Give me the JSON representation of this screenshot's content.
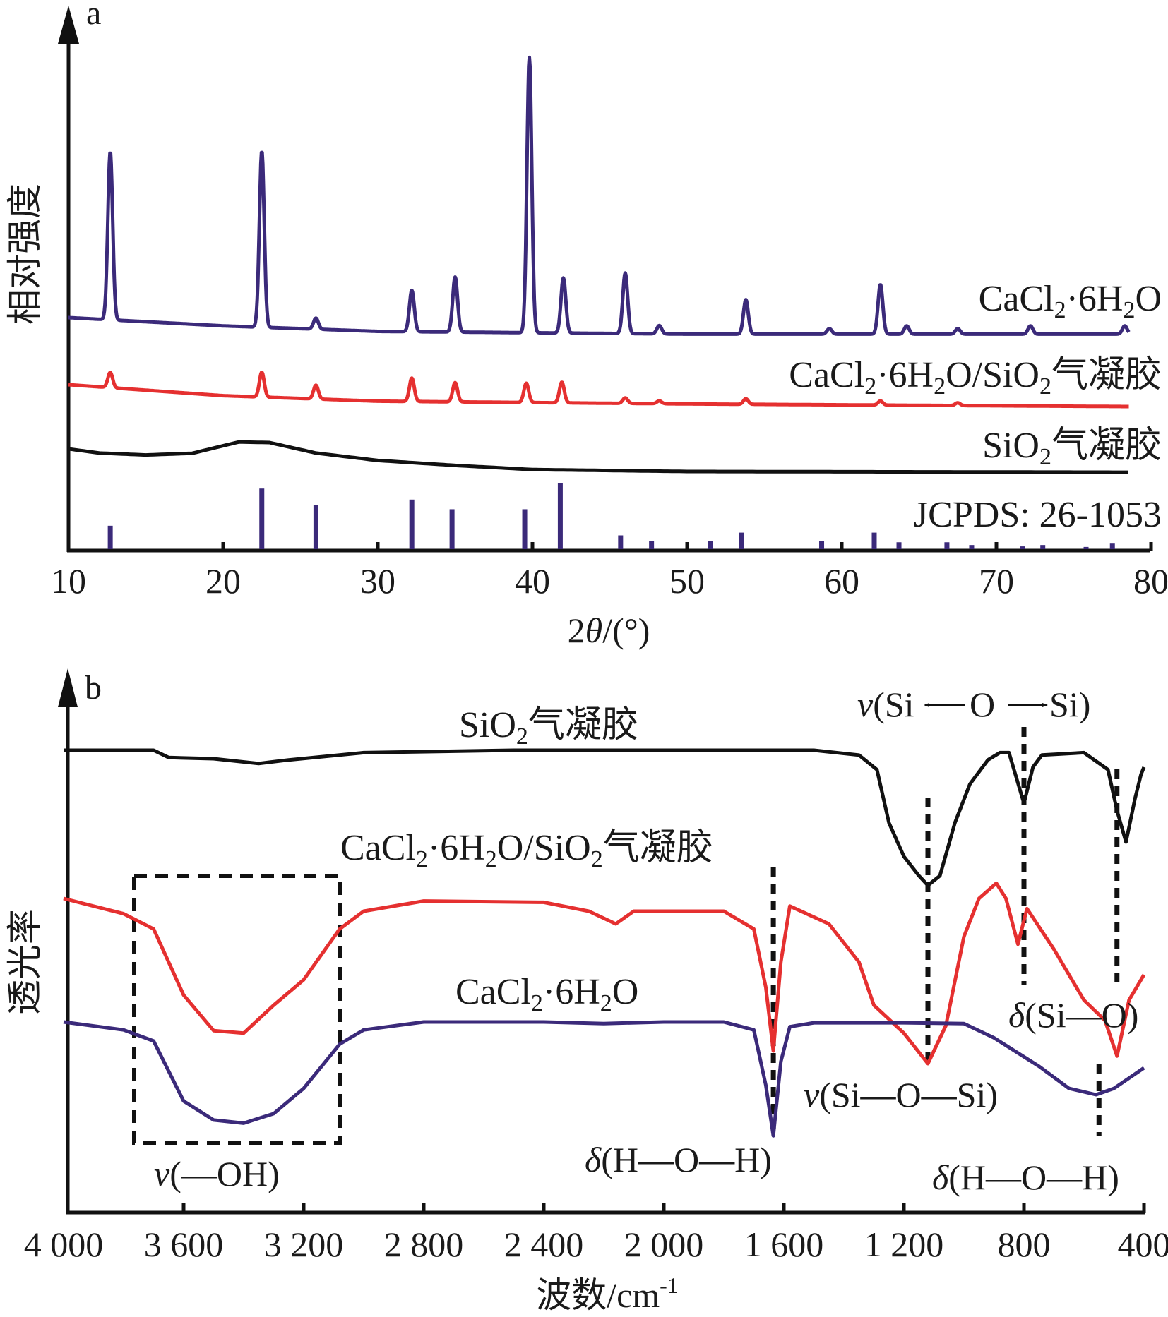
{
  "chart_data": [
    {
      "panel": "a",
      "type": "line",
      "title": "",
      "xlabel": "2θ/(°)",
      "ylabel": "相对强度",
      "xlim": [
        10,
        80
      ],
      "xticks": [
        10,
        20,
        30,
        40,
        50,
        60,
        70,
        80
      ],
      "y_units": "relative intensity (a.u., strongest peak = 100)",
      "series": [
        {
          "name": "CaCl₂·6H₂O",
          "label_parts": [
            "CaCl",
            "2",
            "·6H",
            "2",
            "O"
          ],
          "color": "#3b2a7a",
          "baseline": [
            [
              10,
              0
            ],
            [
              20,
              -3
            ],
            [
              30,
              -5
            ],
            [
              50,
              -6
            ],
            [
              80,
              -6
            ]
          ],
          "peaks": [
            [
              12.7,
              61
            ],
            [
              22.5,
              64
            ],
            [
              26.0,
              4
            ],
            [
              32.2,
              15
            ],
            [
              35.0,
              20
            ],
            [
              39.8,
              100
            ],
            [
              42.0,
              20
            ],
            [
              46.0,
              22
            ],
            [
              48.2,
              3
            ],
            [
              53.8,
              12.5
            ],
            [
              59.2,
              2
            ],
            [
              62.5,
              18
            ],
            [
              64.2,
              3
            ],
            [
              67.5,
              2
            ],
            [
              72.2,
              3
            ],
            [
              78.3,
              3
            ]
          ]
        },
        {
          "name": "CaCl₂·6H₂O/SiO₂气凝胶",
          "label_parts": [
            "CaCl",
            "2",
            "·6H",
            "2",
            "O/SiO",
            "2",
            "气凝胶"
          ],
          "color": "#e53030",
          "baseline": [
            [
              10,
              0
            ],
            [
              20,
              -4
            ],
            [
              30,
              -6
            ],
            [
              50,
              -7
            ],
            [
              80,
              -8
            ]
          ],
          "peaks": [
            [
              12.7,
              5.5
            ],
            [
              22.5,
              9
            ],
            [
              26.0,
              5
            ],
            [
              32.2,
              8.5
            ],
            [
              35.0,
              7
            ],
            [
              39.6,
              7
            ],
            [
              41.9,
              7.5
            ],
            [
              46.0,
              2
            ],
            [
              48.2,
              1
            ],
            [
              53.8,
              2
            ],
            [
              62.5,
              1.5
            ],
            [
              67.5,
              1
            ]
          ]
        },
        {
          "name": "SiO₂气凝胶",
          "label_parts": [
            "SiO",
            "2",
            "气凝胶"
          ],
          "color": "#111111",
          "points": [
            [
              10,
              0
            ],
            [
              12,
              -1.5
            ],
            [
              15,
              -2.2
            ],
            [
              18,
              -1.6
            ],
            [
              21,
              2.5
            ],
            [
              23,
              2.3
            ],
            [
              26,
              -1.5
            ],
            [
              30,
              -4.2
            ],
            [
              35,
              -6
            ],
            [
              40,
              -7.5
            ],
            [
              50,
              -8.2
            ],
            [
              60,
              -8.3
            ],
            [
              80,
              -8.5
            ]
          ]
        }
      ],
      "reference": {
        "name": "JCPDS: 26-1053",
        "color": "#3b2a7a",
        "sticks": [
          [
            12.7,
            8.5
          ],
          [
            22.5,
            22
          ],
          [
            26.0,
            16
          ],
          [
            32.2,
            18
          ],
          [
            34.8,
            14.5
          ],
          [
            39.5,
            14.5
          ],
          [
            41.8,
            24
          ],
          [
            45.7,
            5
          ],
          [
            47.7,
            3
          ],
          [
            51.5,
            3
          ],
          [
            53.5,
            6
          ],
          [
            58.7,
            3
          ],
          [
            62.1,
            6
          ],
          [
            63.7,
            2.5
          ],
          [
            66.8,
            2.5
          ],
          [
            68.4,
            1.5
          ],
          [
            71.7,
            1
          ],
          [
            73.0,
            1.5
          ],
          [
            75.8,
            0.8
          ],
          [
            77.5,
            2
          ]
        ]
      }
    },
    {
      "panel": "b",
      "type": "line",
      "title": "",
      "xlabel": "波数/cm",
      "xlabel_superscript": "-1",
      "ylabel": "透光率",
      "xlim": [
        4000,
        400
      ],
      "xticks": [
        4000,
        3600,
        3200,
        2800,
        2400,
        2000,
        1600,
        1200,
        800,
        400
      ],
      "xtick_labels": [
        "4 000",
        "3 600",
        "3 200",
        "2 800",
        "2 400",
        "2 000",
        "1 600",
        "1 200",
        "800",
        "400"
      ],
      "y_units": "transmittance (a.u., offset traces)",
      "series": [
        {
          "name": "SiO₂气凝胶",
          "label_parts": [
            "SiO",
            "2",
            "气凝胶"
          ],
          "color": "#111111",
          "points": [
            [
              4000,
              100
            ],
            [
              3700,
              100
            ],
            [
              3650,
              97
            ],
            [
              3500,
              96.5
            ],
            [
              3350,
              94.5
            ],
            [
              3250,
              96
            ],
            [
              3000,
              99
            ],
            [
              2500,
              100
            ],
            [
              2000,
              100
            ],
            [
              1500,
              100
            ],
            [
              1350,
              98
            ],
            [
              1290,
              92
            ],
            [
              1250,
              70
            ],
            [
              1200,
              56
            ],
            [
              1150,
              48
            ],
            [
              1120,
              44
            ],
            [
              1080,
              48
            ],
            [
              1030,
              70
            ],
            [
              980,
              86
            ],
            [
              920,
              96
            ],
            [
              880,
              99
            ],
            [
              850,
              99
            ],
            [
              800,
              78
            ],
            [
              770,
              93
            ],
            [
              740,
              98
            ],
            [
              600,
              99
            ],
            [
              520,
              92
            ],
            [
              490,
              75
            ],
            [
              460,
              62
            ],
            [
              430,
              80
            ],
            [
              410,
              90
            ],
            [
              400,
              93
            ]
          ]
        },
        {
          "name": "CaCl₂·6H₂O/SiO₂气凝胶",
          "label_parts": [
            "CaCl",
            "2",
            "·6H",
            "2",
            "O/SiO",
            "2",
            "气凝胶"
          ],
          "color": "#e53030",
          "points": [
            [
              4000,
              100
            ],
            [
              3800,
              94
            ],
            [
              3700,
              88
            ],
            [
              3600,
              62
            ],
            [
              3500,
              48
            ],
            [
              3400,
              47
            ],
            [
              3300,
              58
            ],
            [
              3200,
              68
            ],
            [
              3080,
              88
            ],
            [
              3000,
              95
            ],
            [
              2800,
              99
            ],
            [
              2400,
              98.5
            ],
            [
              2250,
              95
            ],
            [
              2160,
              90
            ],
            [
              2100,
              95
            ],
            [
              1800,
              95
            ],
            [
              1700,
              88
            ],
            [
              1660,
              65
            ],
            [
              1635,
              40
            ],
            [
              1610,
              75
            ],
            [
              1580,
              97
            ],
            [
              1450,
              90
            ],
            [
              1350,
              75
            ],
            [
              1300,
              58
            ],
            [
              1200,
              47
            ],
            [
              1120,
              35
            ],
            [
              1060,
              50
            ],
            [
              1000,
              85
            ],
            [
              950,
              100
            ],
            [
              892,
              106
            ],
            [
              860,
              100
            ],
            [
              820,
              82
            ],
            [
              790,
              96
            ],
            [
              700,
              80
            ],
            [
              600,
              60
            ],
            [
              530,
              52
            ],
            [
              490,
              38
            ],
            [
              450,
              60
            ],
            [
              400,
              70
            ]
          ]
        },
        {
          "name": "CaCl₂·6H₂O",
          "label_parts": [
            "CaCl",
            "2",
            "·6H",
            "2",
            "O"
          ],
          "color": "#3b2a7a",
          "points": [
            [
              4000,
              100
            ],
            [
              3800,
              95
            ],
            [
              3700,
              88
            ],
            [
              3600,
              50
            ],
            [
              3500,
              38
            ],
            [
              3400,
              36
            ],
            [
              3300,
              42
            ],
            [
              3200,
              58
            ],
            [
              3080,
              86
            ],
            [
              3000,
              95
            ],
            [
              2800,
              100
            ],
            [
              2400,
              100
            ],
            [
              2200,
              99
            ],
            [
              2000,
              100
            ],
            [
              1800,
              100
            ],
            [
              1700,
              95
            ],
            [
              1660,
              60
            ],
            [
              1635,
              28
            ],
            [
              1610,
              75
            ],
            [
              1580,
              97
            ],
            [
              1500,
              99.5
            ],
            [
              1200,
              99.5
            ],
            [
              1000,
              99
            ],
            [
              900,
              90
            ],
            [
              750,
              72
            ],
            [
              650,
              58
            ],
            [
              560,
              54
            ],
            [
              500,
              58
            ],
            [
              400,
              71
            ]
          ]
        }
      ],
      "annotations": {
        "box_label": "v(—OH)",
        "box_range_cm": [
          3800,
          3080
        ],
        "markers": [
          {
            "label": "δ(H—O—H)",
            "wavenumber": 1635
          },
          {
            "label": "v(Si—O—Si)",
            "wavenumber": 1120
          },
          {
            "label": "v(Si←O→Si)",
            "wavenumber": 800
          },
          {
            "label": "δ(Si—O)",
            "wavenumber": 490
          },
          {
            "label": "δ(H—O—H)",
            "wavenumber": 550
          }
        ]
      }
    }
  ],
  "labels": {
    "panel_a": "a",
    "panel_b": "b",
    "a_ylabel": "相对强度",
    "b_ylabel": "透光率",
    "a_xlabel_pre": "2",
    "a_xlabel_theta": "θ",
    "a_xlabel_post": "/(°)",
    "b_xlabel": "波数/cm",
    "b_xlabel_sup": "-1",
    "jcpds": "JCPDS: 26-1053",
    "v_oh_v": "v",
    "v_oh_rest": "(—OH)",
    "d_hoh_d": "δ",
    "d_hoh_rest": "(H—O—H)",
    "v_siosi_v": "v",
    "v_siosi_rest": "(Si—O—Si)",
    "v_siosi_arrow_v": "v",
    "v_siosi_arrow_a": "(Si",
    "v_siosi_arrow_o": "O",
    "v_siosi_arrow_b": "Si)",
    "d_sio_d": "δ",
    "d_sio_rest": "(Si—O)"
  }
}
